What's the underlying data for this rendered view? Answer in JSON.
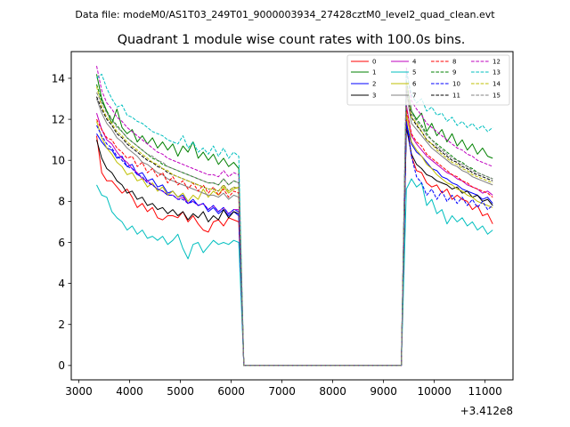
{
  "suptitle": "Data file: modeM0/AS1T03_249T01_9000003934_27428cztM0_level2_quad_clean.evt",
  "chart_data": {
    "type": "line",
    "title": "Quadrant 1 module wise count rates with 100.0s bins.",
    "xlabel": "",
    "ylabel": "",
    "offset_label": "+3.412e8",
    "xlim": [
      2850,
      11550
    ],
    "ylim": [
      -0.7,
      15.3
    ],
    "xticks": [
      3000,
      4000,
      5000,
      6000,
      7000,
      8000,
      9000,
      10000,
      11000
    ],
    "yticks": [
      0,
      2,
      4,
      6,
      8,
      10,
      12,
      14
    ],
    "x": [
      3350,
      3450,
      3550,
      3650,
      3750,
      3850,
      3950,
      4050,
      4150,
      4250,
      4350,
      4450,
      4550,
      4650,
      4750,
      4850,
      4950,
      5050,
      5150,
      5250,
      5350,
      5450,
      5550,
      5650,
      5750,
      5850,
      5950,
      6050,
      6150,
      6250,
      6350,
      6450,
      6550,
      6650,
      6750,
      6850,
      6950,
      7050,
      7150,
      7250,
      7350,
      7450,
      7550,
      7650,
      7750,
      7850,
      7950,
      8050,
      8150,
      8250,
      8350,
      8450,
      8550,
      8650,
      8750,
      8850,
      8950,
      9050,
      9150,
      9250,
      9350,
      9450,
      9550,
      9650,
      9750,
      9850,
      9950,
      10050,
      10150,
      10250,
      10350,
      10450,
      10550,
      10650,
      10750,
      10850,
      10950,
      11050,
      11150
    ],
    "first_segment_points": 29,
    "third_segment_start": 61,
    "series": [
      {
        "name": "0",
        "color": "#ff0000",
        "dash": false,
        "seg1": [
          11.2,
          9.4,
          9.0,
          9.0,
          8.7,
          8.4,
          8.6,
          8.2,
          7.7,
          7.9,
          7.5,
          7.7,
          7.2,
          7.1,
          7.3,
          7.3,
          7.2,
          7.5,
          7.0,
          7.3,
          6.9,
          6.6,
          6.5,
          7.0,
          7.1,
          6.8,
          7.2,
          7.1,
          7.0
        ],
        "seg3": [
          12.0,
          10.2,
          9.5,
          9.4,
          8.9,
          8.7,
          8.8,
          8.4,
          8.6,
          8.1,
          8.3,
          8.1,
          8.0,
          7.6,
          7.8,
          7.3,
          7.4,
          6.9
        ]
      },
      {
        "name": "1",
        "color": "#008000",
        "dash": false,
        "seg1": [
          14.2,
          13.0,
          12.4,
          11.8,
          12.5,
          11.6,
          11.3,
          11.5,
          10.9,
          11.2,
          10.8,
          11.1,
          10.6,
          10.9,
          10.5,
          10.8,
          10.2,
          10.7,
          10.4,
          10.9,
          10.1,
          10.4,
          10.0,
          10.3,
          9.8,
          10.1,
          9.7,
          9.9,
          9.6
        ],
        "seg3": [
          13.8,
          12.4,
          12.0,
          12.3,
          11.4,
          11.8,
          11.2,
          11.5,
          10.9,
          11.3,
          10.7,
          11.0,
          10.5,
          10.8,
          10.3,
          10.6,
          10.2,
          10.1
        ]
      },
      {
        "name": "2",
        "color": "#0000ff",
        "dash": false,
        "seg1": [
          11.3,
          10.9,
          10.6,
          10.5,
          10.1,
          10.2,
          9.7,
          9.8,
          9.3,
          9.4,
          9.0,
          9.1,
          8.7,
          8.8,
          8.4,
          8.5,
          8.2,
          8.3,
          7.9,
          8.1,
          7.8,
          7.9,
          7.5,
          7.7,
          7.4,
          7.6,
          7.3,
          7.5,
          7.3
        ],
        "seg3": [
          11.8,
          10.8,
          10.4,
          10.2,
          9.9,
          9.6,
          9.5,
          9.2,
          9.1,
          8.9,
          8.8,
          8.6,
          8.5,
          8.4,
          8.3,
          8.1,
          8.2,
          7.9
        ]
      },
      {
        "name": "3",
        "color": "#000000",
        "dash": false,
        "seg1": [
          11.0,
          10.1,
          9.6,
          9.4,
          9.0,
          8.8,
          8.4,
          8.5,
          8.1,
          8.2,
          7.8,
          7.9,
          7.6,
          7.7,
          7.4,
          7.6,
          7.3,
          7.5,
          7.1,
          7.4,
          7.2,
          7.5,
          7.0,
          7.3,
          7.1,
          7.6,
          7.2,
          7.5,
          7.4
        ],
        "seg3": [
          11.6,
          10.3,
          9.8,
          9.6,
          9.3,
          9.2,
          9.0,
          8.9,
          8.8,
          8.6,
          8.7,
          8.4,
          8.5,
          8.2,
          8.3,
          8.0,
          8.1,
          7.8
        ]
      },
      {
        "name": "4",
        "color": "#bf00bf",
        "dash": false,
        "seg1": [
          12.3,
          11.5,
          11.0,
          10.8,
          10.4,
          10.1,
          9.9,
          9.6,
          9.4,
          9.1,
          9.0,
          8.8,
          8.6,
          8.5,
          8.3,
          8.3,
          8.1,
          8.2,
          7.9,
          8.0,
          7.8,
          7.9,
          7.6,
          7.8,
          7.5,
          7.7,
          7.4,
          7.6,
          7.6
        ],
        "seg3": [
          12.7,
          11.2,
          10.8,
          10.5,
          10.2,
          10.0,
          9.8,
          9.6,
          9.4,
          9.3,
          9.1,
          9.0,
          8.8,
          8.7,
          8.6,
          8.4,
          8.5,
          8.3
        ]
      },
      {
        "name": "5",
        "color": "#00bfbf",
        "dash": false,
        "seg1": [
          8.8,
          8.3,
          8.2,
          7.5,
          7.2,
          7.0,
          6.6,
          6.8,
          6.4,
          6.6,
          6.2,
          6.3,
          6.1,
          6.3,
          5.9,
          6.1,
          6.4,
          5.7,
          5.2,
          5.9,
          6.0,
          5.5,
          5.8,
          6.1,
          5.9,
          6.0,
          5.9,
          6.1,
          6.0
        ],
        "seg3": [
          8.6,
          9.1,
          8.7,
          8.9,
          7.8,
          8.1,
          7.4,
          7.6,
          6.9,
          7.3,
          7.0,
          7.2,
          6.8,
          7.0,
          6.6,
          6.8,
          6.4,
          6.6
        ]
      },
      {
        "name": "6",
        "color": "#bfbf00",
        "dash": false,
        "seg1": [
          11.9,
          11.1,
          10.6,
          10.3,
          9.9,
          9.7,
          9.3,
          9.4,
          9.0,
          9.1,
          8.7,
          8.9,
          8.5,
          8.7,
          8.3,
          8.5,
          8.2,
          8.4,
          8.0,
          8.3,
          8.1,
          8.6,
          8.2,
          8.5,
          8.3,
          8.7,
          8.4,
          8.6,
          8.7
        ],
        "seg3": [
          12.3,
          10.9,
          10.5,
          10.2,
          9.8,
          9.6,
          9.3,
          9.1,
          8.9,
          8.8,
          8.6,
          8.5,
          8.3,
          8.2,
          8.0,
          7.9,
          7.8,
          7.7
        ]
      },
      {
        "name": "7",
        "color": "#808080",
        "dash": false,
        "seg1": [
          13.0,
          12.3,
          11.8,
          11.5,
          11.1,
          10.9,
          10.6,
          10.4,
          10.2,
          9.9,
          9.8,
          9.6,
          9.4,
          9.3,
          9.1,
          9.0,
          8.9,
          8.8,
          8.7,
          8.6,
          8.5,
          8.4,
          8.3,
          8.3,
          8.2,
          8.4,
          8.1,
          8.3,
          8.2
        ],
        "seg3": [
          13.3,
          11.8,
          11.5,
          11.2,
          10.9,
          10.6,
          10.4,
          10.2,
          10.0,
          9.8,
          9.7,
          9.5,
          9.4,
          9.2,
          9.1,
          9.0,
          8.9,
          8.8
        ]
      },
      {
        "name": "8",
        "color": "#ff0000",
        "dash": true,
        "seg1": [
          12.0,
          11.5,
          11.1,
          11.0,
          10.6,
          10.4,
          10.1,
          10.2,
          9.7,
          9.9,
          9.4,
          9.6,
          9.2,
          9.4,
          8.9,
          9.2,
          8.8,
          9.0,
          8.6,
          8.9,
          8.5,
          8.8,
          8.4,
          8.7,
          8.3,
          8.6,
          8.2,
          8.5,
          8.4
        ],
        "seg3": [
          12.5,
          11.3,
          10.9,
          10.7,
          10.3,
          10.1,
          9.9,
          9.7,
          9.5,
          9.3,
          9.2,
          9.0,
          8.9,
          8.7,
          8.6,
          8.5,
          8.4,
          8.2
        ]
      },
      {
        "name": "9",
        "color": "#008000",
        "dash": true,
        "seg1": [
          13.7,
          12.9,
          12.4,
          12.0,
          11.7,
          11.4,
          11.1,
          10.9,
          10.7,
          10.5,
          10.3,
          10.1,
          10.0,
          9.8,
          9.7,
          9.6,
          9.5,
          9.4,
          9.3,
          9.2,
          9.1,
          9.0,
          8.9,
          8.9,
          8.8,
          9.1,
          8.8,
          9.0,
          8.9
        ],
        "seg3": [
          13.9,
          12.4,
          12.0,
          11.7,
          11.3,
          11.0,
          10.8,
          10.6,
          10.4,
          10.2,
          10.0,
          9.9,
          9.7,
          9.6,
          9.4,
          9.3,
          9.2,
          9.1
        ]
      },
      {
        "name": "10",
        "color": "#0000ff",
        "dash": true,
        "seg1": [
          11.7,
          11.2,
          10.8,
          10.6,
          10.2,
          10.0,
          9.7,
          9.6,
          9.3,
          9.2,
          8.9,
          8.8,
          8.6,
          8.5,
          8.3,
          8.3,
          8.1,
          8.1,
          7.9,
          8.0,
          7.8,
          7.9,
          7.6,
          7.8,
          7.5,
          7.7,
          7.4,
          7.6,
          7.5
        ],
        "seg3": [
          11.9,
          10.2,
          9.2,
          8.9,
          8.3,
          8.6,
          8.1,
          8.5,
          8.0,
          8.3,
          7.9,
          8.2,
          7.8,
          8.1,
          7.7,
          8.0,
          7.6,
          7.8
        ]
      },
      {
        "name": "11",
        "color": "#000000",
        "dash": true,
        "seg1": [
          13.1,
          12.5,
          12.0,
          11.7,
          11.3,
          11.1,
          10.8,
          10.6,
          10.4,
          10.2,
          10.0,
          9.9,
          9.7,
          9.6,
          9.4,
          9.3,
          9.2,
          9.1,
          9.0,
          8.9,
          8.8,
          8.7,
          8.6,
          8.6,
          8.5,
          8.8,
          8.5,
          8.7,
          8.6
        ],
        "seg3": [
          13.5,
          12.1,
          11.7,
          11.4,
          11.0,
          10.8,
          10.6,
          10.4,
          10.2,
          10.0,
          9.9,
          9.7,
          9.6,
          9.4,
          9.3,
          9.2,
          9.1,
          9.0
        ]
      },
      {
        "name": "12",
        "color": "#bf00bf",
        "dash": true,
        "seg1": [
          14.6,
          13.4,
          12.8,
          12.5,
          12.1,
          11.9,
          11.6,
          11.4,
          11.2,
          11.0,
          10.8,
          10.6,
          10.4,
          10.3,
          10.1,
          10.0,
          9.9,
          9.8,
          9.7,
          9.6,
          9.5,
          9.4,
          9.3,
          9.3,
          9.2,
          9.5,
          9.2,
          9.4,
          9.3
        ],
        "seg3": [
          14.5,
          12.9,
          12.5,
          12.2,
          11.8,
          11.6,
          11.4,
          11.2,
          11.0,
          10.8,
          10.6,
          10.5,
          10.3,
          10.2,
          10.0,
          9.9,
          9.8,
          9.7
        ]
      },
      {
        "name": "13",
        "color": "#00bfbf",
        "dash": true,
        "seg1": [
          14.0,
          14.2,
          13.5,
          13.0,
          12.6,
          12.7,
          12.2,
          12.1,
          11.9,
          11.8,
          11.6,
          11.4,
          11.3,
          11.2,
          11.0,
          10.9,
          10.8,
          11.2,
          10.6,
          10.9,
          10.4,
          10.6,
          10.3,
          10.7,
          10.2,
          10.6,
          10.1,
          10.4,
          10.2
        ],
        "seg3": [
          14.3,
          13.2,
          12.8,
          13.0,
          12.4,
          12.6,
          12.2,
          12.3,
          11.9,
          12.1,
          11.7,
          11.9,
          11.6,
          11.8,
          11.5,
          11.7,
          11.4,
          11.6
        ]
      },
      {
        "name": "14",
        "color": "#bfbf00",
        "dash": true,
        "seg1": [
          13.6,
          12.6,
          12.1,
          11.8,
          11.4,
          11.2,
          10.9,
          10.7,
          10.5,
          10.3,
          10.1,
          9.9,
          9.8,
          9.6,
          9.5,
          9.3,
          9.2,
          9.1,
          9.0,
          8.9,
          8.8,
          8.7,
          8.6,
          8.6,
          8.5,
          8.8,
          8.5,
          8.7,
          8.6
        ],
        "seg3": [
          13.8,
          12.1,
          11.8,
          11.4,
          11.0,
          10.8,
          10.5,
          10.3,
          10.1,
          9.9,
          9.8,
          9.6,
          9.5,
          9.3,
          9.2,
          9.1,
          9.0,
          8.9
        ]
      },
      {
        "name": "15",
        "color": "#808080",
        "dash": true,
        "seg1": [
          13.3,
          12.8,
          12.3,
          12.0,
          11.6,
          11.4,
          11.1,
          10.9,
          10.7,
          10.5,
          10.3,
          10.2,
          10.0,
          9.9,
          9.7,
          9.6,
          9.5,
          9.4,
          9.3,
          9.2,
          9.1,
          9.0,
          8.9,
          8.9,
          8.8,
          9.1,
          8.8,
          9.0,
          8.9
        ],
        "seg3": [
          13.6,
          12.3,
          11.9,
          11.6,
          11.2,
          11.0,
          10.7,
          10.5,
          10.3,
          10.1,
          10.0,
          9.8,
          9.7,
          9.5,
          9.4,
          9.3,
          9.2,
          9.1
        ]
      }
    ],
    "legend_location": "top-right"
  }
}
